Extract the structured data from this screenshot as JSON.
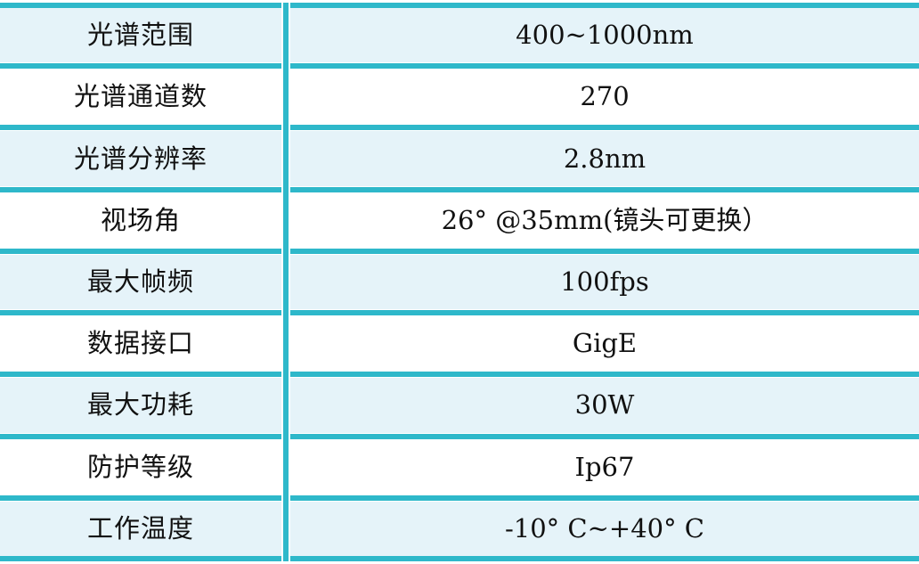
{
  "table": {
    "rows": [
      {
        "label": "光谱范围",
        "value": "400~1000nm"
      },
      {
        "label": "光谱通道数",
        "value": "270"
      },
      {
        "label": "光谱分辨率",
        "value": "2.8nm"
      },
      {
        "label": "视场角",
        "value": "26° @35mm(镜头可更换）"
      },
      {
        "label": "最大帧频",
        "value": "100fps"
      },
      {
        "label": "数据接口",
        "value": "GigE"
      },
      {
        "label": "最大功耗",
        "value": "30W"
      },
      {
        "label": "防护等级",
        "value": "Ip67"
      },
      {
        "label": "工作温度",
        "value": "-10° C~+40° C"
      }
    ],
    "colors": {
      "accent_teal": "#2eb8ca",
      "row_alt_bg": "#e5f3f9",
      "row_bg": "#ffffff",
      "text": "#111111"
    }
  }
}
